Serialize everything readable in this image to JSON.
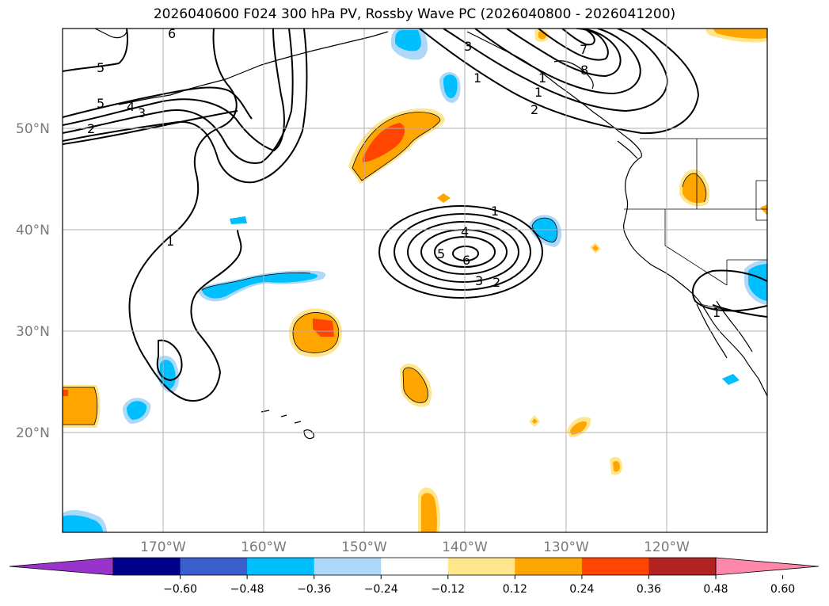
{
  "title": "2026040600 F024 300 hPa PV, Rossby Wave PC (2026040800 - 2026041200)",
  "latitude_labels": [
    "50°N",
    "40°N",
    "30°N",
    "20°N"
  ],
  "longitude_labels": [
    "170°W",
    "160°W",
    "150°W",
    "140°W",
    "130°W",
    "120°W"
  ],
  "colorbar": {
    "colors": [
      "#9933cc",
      "#00008b",
      "#3a5fcd",
      "#00bfff",
      "#add8f8",
      "#ffffff",
      "#ffe68c",
      "#ffa500",
      "#ff4500",
      "#b22222",
      "#ff88aa"
    ],
    "tick_labels": [
      "−0.60",
      "−0.48",
      "−0.36",
      "−0.24",
      "−0.12",
      "0.12",
      "0.24",
      "0.36",
      "0.48",
      "0.60"
    ]
  },
  "contour_labels": [
    "5",
    "5",
    "4",
    "3",
    "2",
    "1",
    "6",
    "3",
    "1",
    "2",
    "7",
    "8",
    "1",
    "4",
    "5",
    "6",
    "3",
    "2",
    "1",
    "1",
    "1"
  ],
  "colors": {
    "land_line": "#000000",
    "grid": "#b0b0b0",
    "contour": "#000000"
  }
}
